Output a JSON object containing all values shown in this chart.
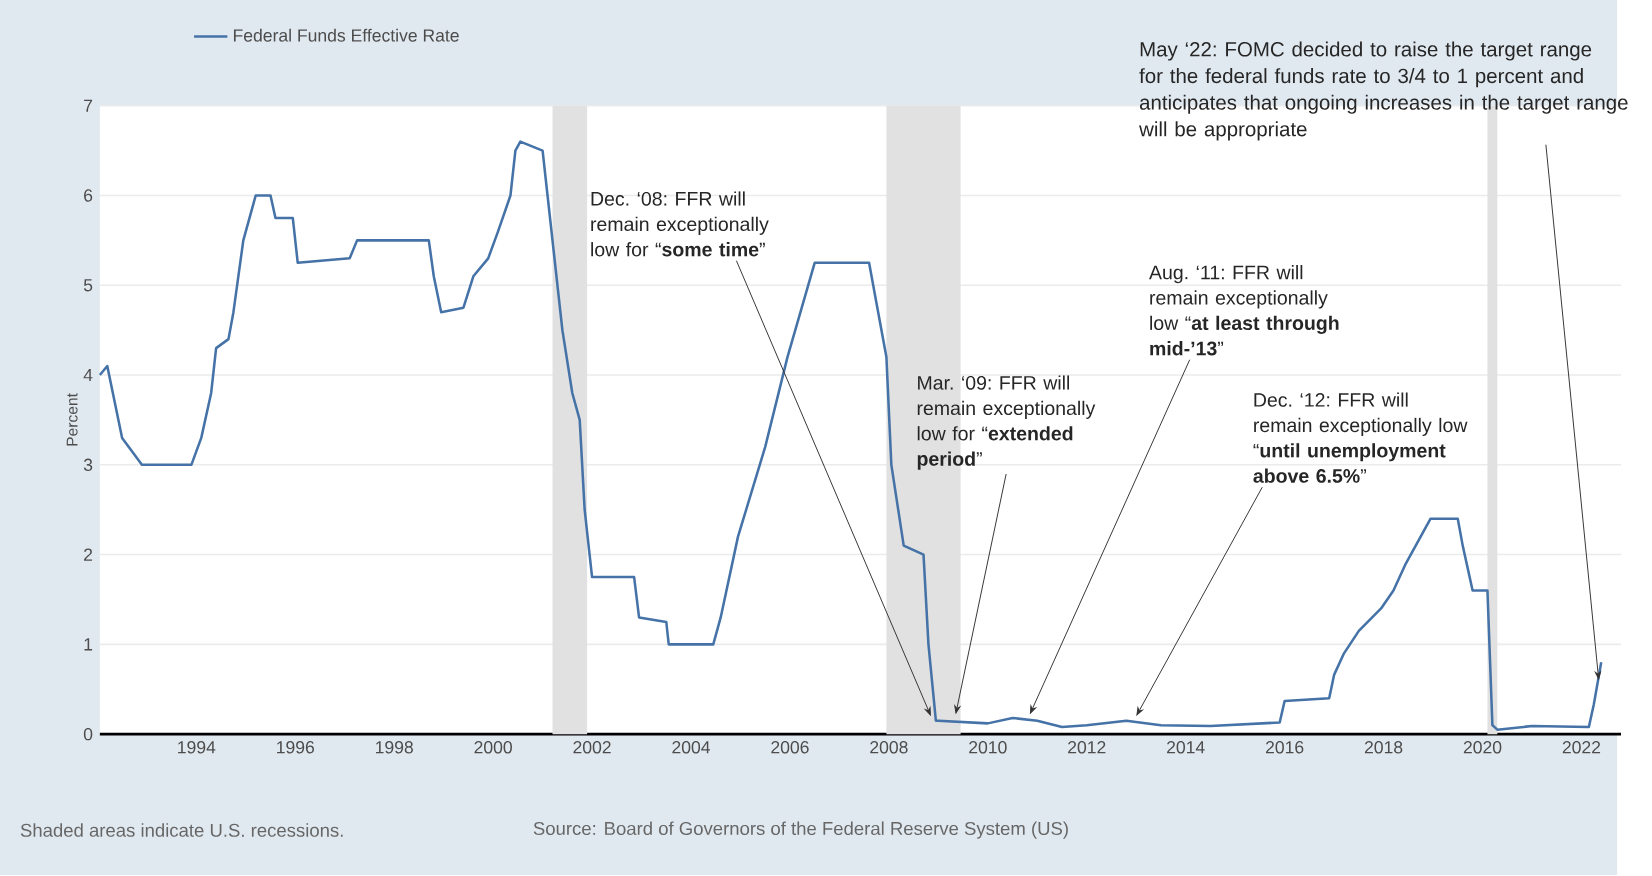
{
  "chart_data": {
    "type": "line",
    "ylabel": "Percent",
    "x": [
      1992.05,
      1992.2,
      1992.5,
      1992.9,
      1993.2,
      1993.9,
      1994.1,
      1994.3,
      1994.4,
      1994.65,
      1994.75,
      1994.95,
      1995.2,
      1995.5,
      1995.6,
      1995.95,
      1996.05,
      1997.1,
      1997.25,
      1998.7,
      1998.8,
      1998.95,
      1999.4,
      1999.6,
      1999.9,
      2000.1,
      2000.35,
      2000.45,
      2000.55,
      2001.0,
      2001.1,
      2001.2,
      2001.4,
      2001.6,
      2001.75,
      2001.85,
      2001.95,
      2002.0,
      2002.85,
      2002.95,
      2003.5,
      2003.55,
      2004.45,
      2004.6,
      2004.95,
      2005.5,
      2005.95,
      2006.5,
      2007.6,
      2007.75,
      2007.95,
      2008.05,
      2008.3,
      2008.7,
      2008.8,
      2008.95,
      2009.0,
      2010.0,
      2010.5,
      2011.0,
      2011.5,
      2012.0,
      2012.8,
      2013.5,
      2014.5,
      2015.9,
      2016.0,
      2016.9,
      2017.0,
      2017.2,
      2017.5,
      2017.95,
      2018.2,
      2018.45,
      2018.7,
      2018.95,
      2019.5,
      2019.6,
      2019.8,
      2020.1,
      2020.2,
      2020.3,
      2021.0,
      2022.15,
      2022.25,
      2022.4
    ],
    "series": [
      {
        "name": "Federal Funds Effective Rate",
        "color": "#4572a7",
        "values": [
          4.0,
          4.1,
          3.3,
          3.0,
          3.0,
          3.0,
          3.3,
          3.8,
          4.3,
          4.4,
          4.7,
          5.5,
          6.0,
          6.0,
          5.75,
          5.75,
          5.25,
          5.3,
          5.5,
          5.5,
          5.1,
          4.7,
          4.75,
          5.1,
          5.3,
          5.6,
          6.0,
          6.5,
          6.6,
          6.5,
          6.0,
          5.5,
          4.5,
          3.8,
          3.5,
          2.5,
          2.0,
          1.75,
          1.75,
          1.3,
          1.25,
          1.0,
          1.0,
          1.3,
          2.2,
          3.2,
          4.2,
          5.25,
          5.25,
          4.8,
          4.2,
          3.0,
          2.1,
          2.0,
          1.0,
          0.15,
          0.15,
          0.12,
          0.18,
          0.15,
          0.08,
          0.1,
          0.15,
          0.1,
          0.09,
          0.13,
          0.37,
          0.4,
          0.66,
          0.9,
          1.15,
          1.4,
          1.6,
          1.9,
          2.15,
          2.4,
          2.4,
          2.1,
          1.6,
          1.6,
          0.1,
          0.05,
          0.09,
          0.08,
          0.33,
          0.8
        ]
      }
    ],
    "xlim": [
      1992.05,
      2022.8
    ],
    "xticks": [
      1994,
      1996,
      1998,
      2000,
      2002,
      2004,
      2006,
      2008,
      2010,
      2012,
      2014,
      2016,
      2018,
      2020,
      2022
    ],
    "ylim": [
      0,
      7
    ],
    "yticks": [
      0,
      1,
      2,
      3,
      4,
      5,
      6,
      7
    ],
    "grid": "y",
    "legend": "top left",
    "bands": [
      {
        "axis": "x",
        "from": 2001.2,
        "to": 2001.9,
        "color": "#e1e1e1"
      },
      {
        "axis": "x",
        "from": 2007.95,
        "to": 2009.45,
        "color": "#e1e1e1"
      },
      {
        "axis": "x",
        "from": 2020.1,
        "to": 2020.3,
        "color": "#e1e1e1"
      }
    ],
    "annotations": [
      {
        "text": "Dec. ‘08: FFR will remain exceptionally low for “**some time**”",
        "x": 2008.85,
        "y": 0.2
      },
      {
        "text": "Mar. ‘09: FFR will remain exceptionally low for “**extended period**”",
        "x": 2009.35,
        "y": 0.22
      },
      {
        "text": "Aug. ‘11: FFR will remain exceptionally low “**at least through mid-’13**”",
        "x": 2010.85,
        "y": 0.22
      },
      {
        "text": "Dec. ‘12: FFR will remain exceptionally low “**until unemployment above 6.5%**”",
        "x": 2013.0,
        "y": 0.2
      },
      {
        "text": "May ‘22: FOMC decided to raise the target range for the federal funds rate to 3/4 to 1 percent and anticipates that ongoing increases in the target range will be appropriate",
        "x": 2022.35,
        "y": 0.6
      },
      "Shaded areas indicate U.S. recessions.",
      "Source: Board of Governors of the Federal Reserve System (US)"
    ]
  }
}
